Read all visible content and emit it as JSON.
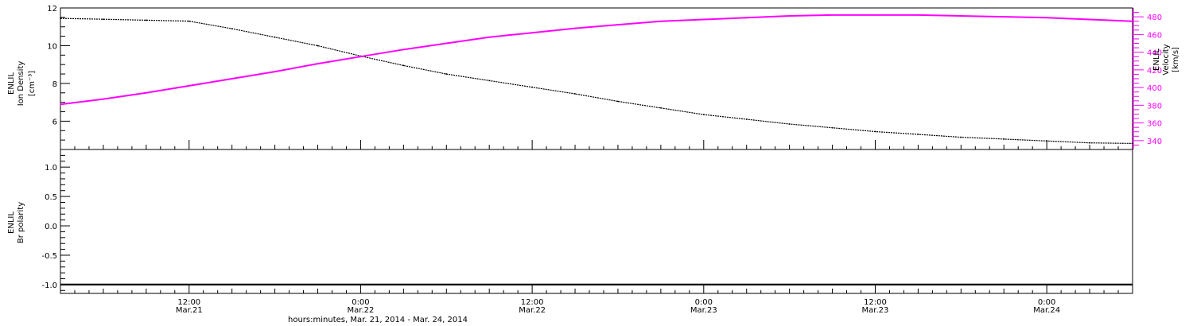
{
  "colors": {
    "density": "#000000",
    "velocity": "#ff00ff",
    "polarity": "#000000",
    "frame": "#000000"
  },
  "xlabel": "hours:minutes, Mar. 21, 2014 - Mar. 24, 2014",
  "x_ticks": [
    {
      "time": "2014-03-21T12:00",
      "line1": "12:00",
      "line2": "Mar.21"
    },
    {
      "time": "2014-03-22T00:00",
      "line1": "0:00",
      "line2": "Mar.22"
    },
    {
      "time": "2014-03-22T12:00",
      "line1": "12:00",
      "line2": "Mar.22"
    },
    {
      "time": "2014-03-23T00:00",
      "line1": "0:00",
      "line2": "Mar.23"
    },
    {
      "time": "2014-03-23T12:00",
      "line1": "12:00",
      "line2": "Mar.23"
    },
    {
      "time": "2014-03-24T00:00",
      "line1": "0:00",
      "line2": "Mar.24"
    }
  ],
  "chart_data": [
    {
      "type": "line",
      "xlim": [
        "2014-03-21T03:00",
        "2014-03-24T06:00"
      ],
      "left_axis": {
        "label_lines": [
          "ENLIL",
          "Ion Density"
        ],
        "unit": "[cm⁻³]",
        "ylim": [
          4.5,
          12
        ],
        "ticks": [
          6,
          8,
          10,
          12
        ]
      },
      "right_axis": {
        "label_lines": [
          "ENLIL",
          "Velocity"
        ],
        "unit": "[km/s]",
        "ylim": [
          330,
          490
        ],
        "ticks": [
          340,
          360,
          380,
          400,
          420,
          440,
          460,
          480
        ]
      },
      "series": [
        {
          "axis": "left",
          "x": [
            "2014-03-21T03:00",
            "2014-03-21T06:00",
            "2014-03-21T09:00",
            "2014-03-21T12:00",
            "2014-03-21T15:00",
            "2014-03-21T18:00",
            "2014-03-21T21:00",
            "2014-03-22T00:00",
            "2014-03-22T03:00",
            "2014-03-22T06:00",
            "2014-03-22T09:00",
            "2014-03-22T12:00",
            "2014-03-22T15:00",
            "2014-03-22T18:00",
            "2014-03-22T21:00",
            "2014-03-23T00:00",
            "2014-03-23T03:00",
            "2014-03-23T06:00",
            "2014-03-23T09:00",
            "2014-03-23T12:00",
            "2014-03-23T15:00",
            "2014-03-23T18:00",
            "2014-03-23T21:00",
            "2014-03-24T00:00",
            "2014-03-24T03:00",
            "2014-03-24T06:00"
          ],
          "values": [
            11.45,
            11.4,
            11.35,
            11.3,
            10.9,
            10.45,
            10.0,
            9.45,
            8.95,
            8.5,
            8.15,
            7.8,
            7.45,
            7.05,
            6.7,
            6.35,
            6.1,
            5.85,
            5.65,
            5.45,
            5.3,
            5.15,
            5.05,
            4.95,
            4.85,
            4.82
          ]
        },
        {
          "axis": "right",
          "x": [
            "2014-03-21T03:00",
            "2014-03-21T06:00",
            "2014-03-21T09:00",
            "2014-03-21T12:00",
            "2014-03-21T15:00",
            "2014-03-21T18:00",
            "2014-03-21T21:00",
            "2014-03-22T00:00",
            "2014-03-22T03:00",
            "2014-03-22T06:00",
            "2014-03-22T09:00",
            "2014-03-22T12:00",
            "2014-03-22T15:00",
            "2014-03-22T18:00",
            "2014-03-22T21:00",
            "2014-03-23T00:00",
            "2014-03-23T03:00",
            "2014-03-23T06:00",
            "2014-03-23T09:00",
            "2014-03-23T12:00",
            "2014-03-23T15:00",
            "2014-03-23T18:00",
            "2014-03-23T21:00",
            "2014-03-24T00:00",
            "2014-03-24T03:00",
            "2014-03-24T06:00"
          ],
          "values": [
            381,
            387,
            394,
            402,
            410,
            418,
            427,
            435,
            443,
            450,
            457,
            462,
            467,
            471,
            475,
            477,
            479,
            481,
            482,
            482,
            482,
            481,
            480,
            479,
            477,
            475
          ]
        }
      ]
    },
    {
      "type": "line",
      "xlim": [
        "2014-03-21T03:00",
        "2014-03-24T06:00"
      ],
      "left_axis": {
        "label_lines": [
          "ENLIL",
          "Br polarity"
        ],
        "ylim": [
          -1.15,
          1.3
        ],
        "ticks": [
          -1.0,
          -0.5,
          0.0,
          0.5,
          1.0
        ],
        "tick_labels": [
          "-1.0",
          "-0.5",
          "0.0",
          "0.5",
          "1.0"
        ]
      },
      "series": [
        {
          "axis": "left",
          "x": [
            "2014-03-21T03:00",
            "2014-03-24T06:00"
          ],
          "values": [
            -1.0,
            -1.0
          ]
        }
      ]
    }
  ]
}
